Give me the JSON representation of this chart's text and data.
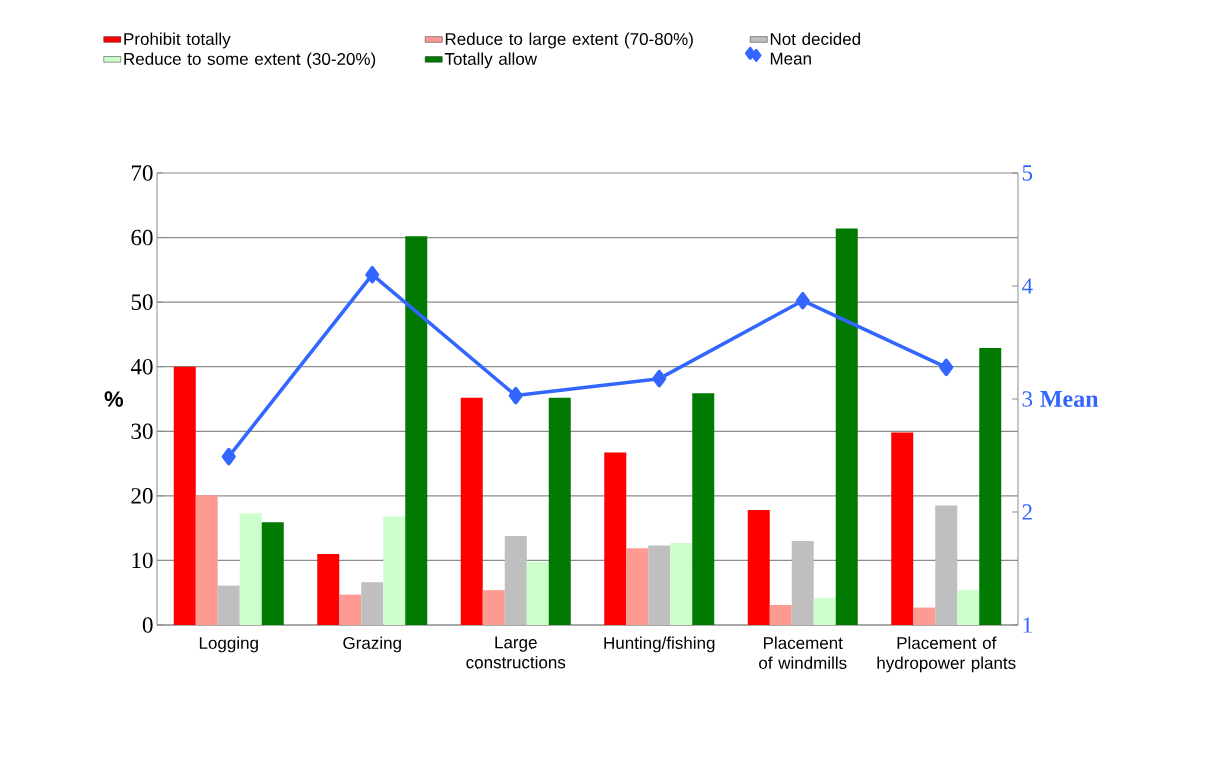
{
  "chart_data": {
    "type": "bar",
    "categories": [
      "Logging",
      "Grazing",
      "Large constructions",
      "Hunting/fishing",
      "Placement of windmills",
      "Placement of hydropower plants"
    ],
    "series": [
      {
        "name": "Prohibit totally",
        "color": "#ff0000",
        "values": [
          40.0,
          11.0,
          35.2,
          26.7,
          17.8,
          29.8
        ]
      },
      {
        "name": "Reduce to large extent (70-80%)",
        "color": "#ff9a93",
        "values": [
          20.1,
          4.7,
          5.4,
          11.9,
          3.1,
          2.7
        ]
      },
      {
        "name": "Not decided",
        "color": "#bfbfbf",
        "values": [
          6.1,
          6.6,
          13.8,
          12.3,
          13.0,
          18.5
        ]
      },
      {
        "name": "Reduce to some extent (30-20%)",
        "color": "#ccffcc",
        "values": [
          17.3,
          16.8,
          9.8,
          12.7,
          4.2,
          5.4
        ]
      },
      {
        "name": "Totally allow",
        "color": "#007a00",
        "values": [
          15.9,
          60.2,
          35.2,
          35.9,
          61.4,
          42.9
        ]
      },
      {
        "name": "Mean",
        "color": "#3366ff",
        "type": "line",
        "axis": "y2",
        "marker": "diamond",
        "values": [
          2.49,
          4.1,
          3.03,
          3.18,
          3.87,
          3.28
        ]
      }
    ],
    "ylabel": "%",
    "y2label": "Mean",
    "ylim": [
      0,
      70
    ],
    "yticks": [
      0,
      10,
      20,
      30,
      40,
      50,
      60,
      70
    ],
    "y2lim": [
      1,
      5
    ],
    "y2ticks": [
      1,
      2,
      3,
      4,
      5
    ],
    "grid": "y",
    "legend": "top"
  }
}
